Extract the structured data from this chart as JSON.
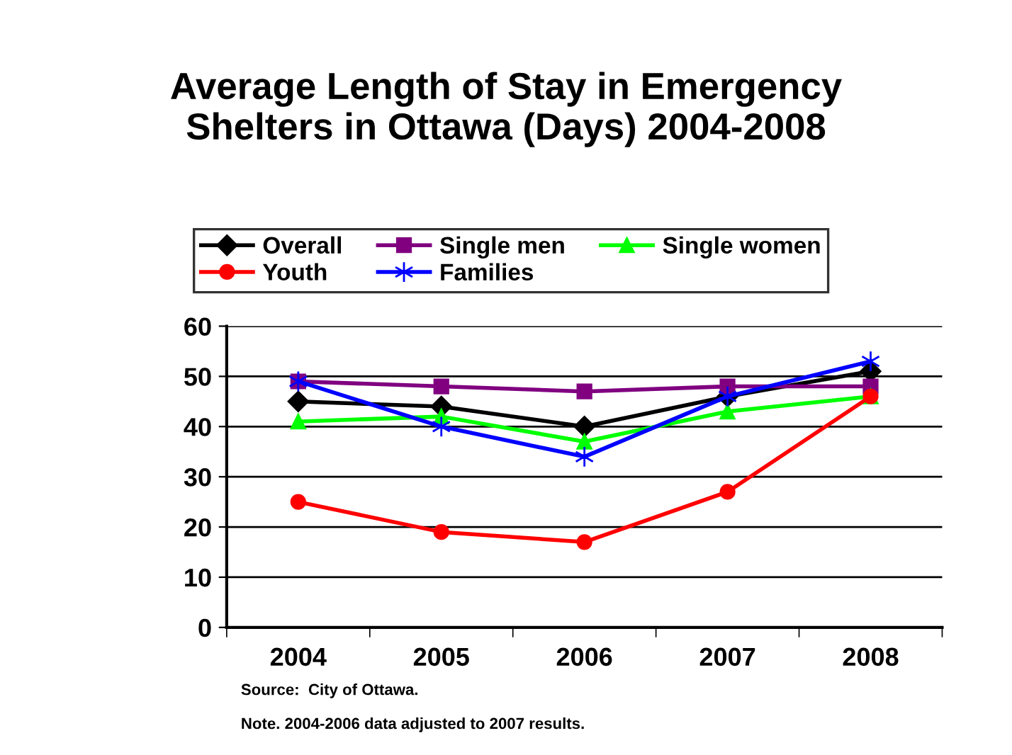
{
  "chart_data": {
    "type": "line",
    "title": "Average Length of Stay in Emergency\nShelters in Ottawa (Days) 2004-2008",
    "categories": [
      "2004",
      "2005",
      "2006",
      "2007",
      "2008"
    ],
    "series": [
      {
        "name": "Overall",
        "color": "#000000",
        "marker": "diamond",
        "values": [
          45,
          44,
          40,
          46,
          51
        ]
      },
      {
        "name": "Single men",
        "color": "#800080",
        "marker": "square",
        "values": [
          49,
          48,
          47,
          48,
          48
        ]
      },
      {
        "name": "Single women",
        "color": "#00ff00",
        "marker": "triangle",
        "values": [
          41,
          42,
          37,
          43,
          46
        ]
      },
      {
        "name": "Youth",
        "color": "#ff0000",
        "marker": "circle",
        "values": [
          25,
          19,
          17,
          27,
          46
        ]
      },
      {
        "name": "Families",
        "color": "#0000ff",
        "marker": "cross",
        "values": [
          49,
          40,
          34,
          46,
          53
        ]
      }
    ],
    "ylim": [
      0,
      60
    ],
    "yticks": [
      0,
      10,
      20,
      30,
      40,
      50,
      60
    ],
    "grid": "y",
    "legend": "top",
    "annotations": [
      "Source:  City of Ottawa.",
      "Note. 2004-2006 data adjusted to 2007 results."
    ]
  }
}
